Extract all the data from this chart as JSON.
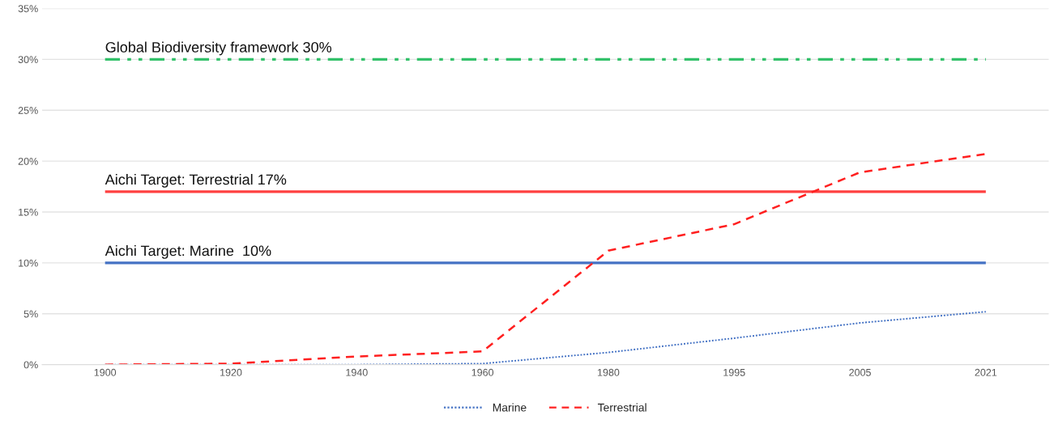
{
  "chart_data": {
    "type": "line",
    "categories": [
      "1900",
      "1920",
      "1940",
      "1960",
      "1980",
      "1995",
      "2005",
      "2021"
    ],
    "series": [
      {
        "name": "Marine",
        "color": "#4472c4",
        "line_style": "dotted",
        "values": [
          0,
          0,
          0,
          0.1,
          1.2,
          2.6,
          4.1,
          5.2
        ]
      },
      {
        "name": "Terrestrial",
        "color": "#ff2020",
        "line_style": "dashed",
        "values": [
          0,
          0.1,
          0.8,
          1.3,
          11.2,
          13.8,
          18.9,
          20.7
        ]
      }
    ],
    "ref_lines": [
      {
        "axis": "y",
        "value": 30,
        "label": "Global Biodiversity framework 30%",
        "color": "#33c16a",
        "line_style": "dashdotdot"
      },
      {
        "axis": "y",
        "value": 17,
        "label": "Aichi Target: Terrestrial 17%",
        "color": "#ff4040",
        "line_style": "solid"
      },
      {
        "axis": "y",
        "value": 10,
        "label": "Aichi Target: Marine  10%",
        "color": "#4472c4",
        "line_style": "solid"
      }
    ],
    "ylim": [
      0,
      35
    ],
    "yticks": [
      {
        "value": 0,
        "label": "0%"
      },
      {
        "value": 5,
        "label": "5%"
      },
      {
        "value": 10,
        "label": "10%"
      },
      {
        "value": 15,
        "label": "15%"
      },
      {
        "value": 20,
        "label": "20%"
      },
      {
        "value": 25,
        "label": "25%"
      },
      {
        "value": 30,
        "label": "30%"
      },
      {
        "value": 35,
        "label": "35%"
      }
    ],
    "grid": "y",
    "legend": "bottom",
    "marker": "none"
  }
}
